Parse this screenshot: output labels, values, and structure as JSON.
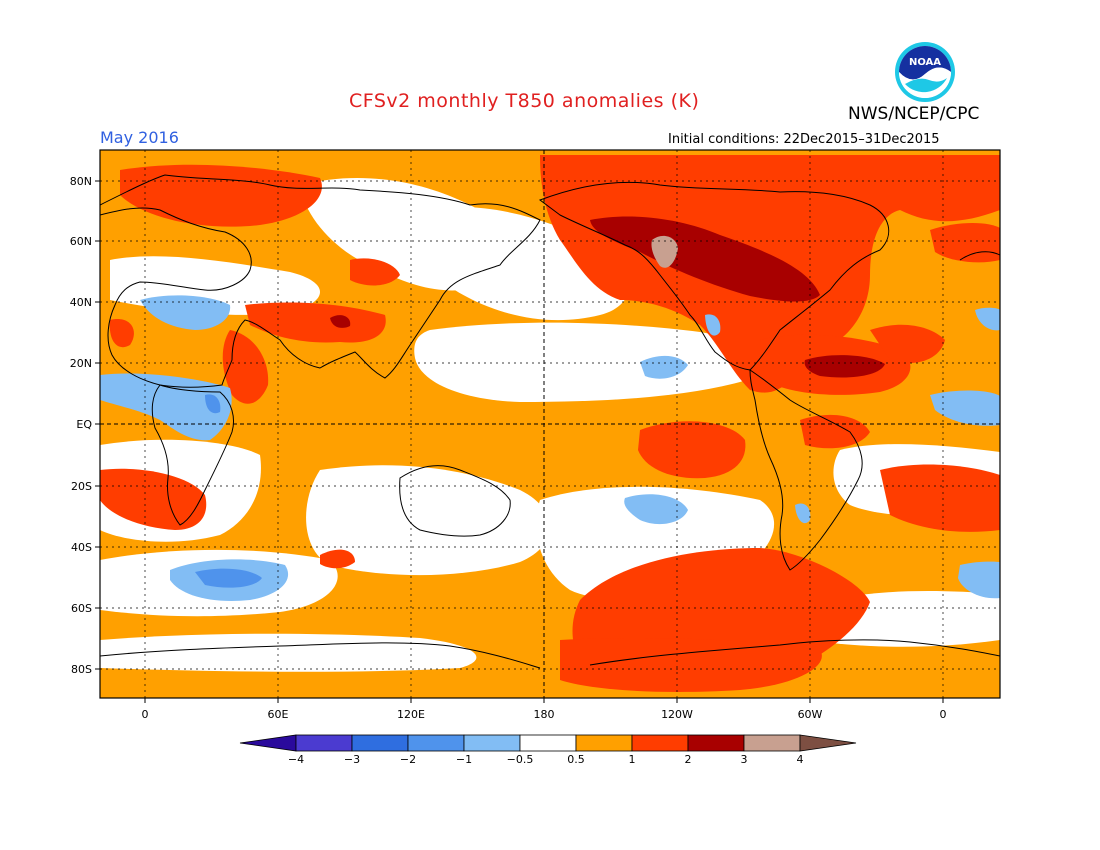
{
  "header": {
    "title": "CFSv2 monthly T850 anomalies (K)",
    "agency": "NWS/NCEP/CPC",
    "month": "May 2016",
    "initial_conditions": "Initial conditions: 22Dec2015–31Dec2015"
  },
  "logo": {
    "text": "NOAA"
  },
  "map": {
    "lat_labels": [
      "80N",
      "60N",
      "40N",
      "20N",
      "EQ",
      "20S",
      "40S",
      "60S",
      "80S"
    ],
    "lon_labels": [
      "0",
      "60E",
      "120E",
      "180",
      "120W",
      "60W",
      "0"
    ],
    "grid": true
  },
  "colorbar": {
    "labels": [
      "−4",
      "−3",
      "−2",
      "−1",
      "−0.5",
      "0.5",
      "1",
      "2",
      "3",
      "4"
    ],
    "colors": [
      "#2a0a9c",
      "#4b3bd0",
      "#2f6ee0",
      "#4f93ec",
      "#82bdf4",
      "#ffffff",
      "#ffa000",
      "#ff3d00",
      "#a80000",
      "#c8a090",
      "#7d4f42"
    ]
  },
  "colors": {
    "title": "#e02020",
    "month": "#3060e0",
    "land_outline": "#000000"
  }
}
